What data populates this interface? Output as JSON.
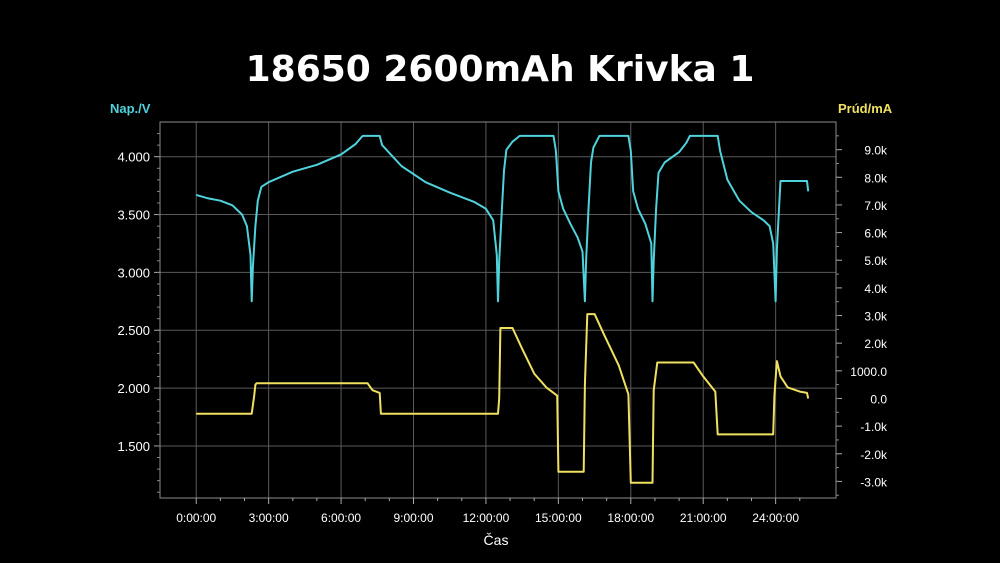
{
  "chart_data": {
    "type": "line",
    "title": "18650 2600mAh Krivka 1",
    "xlabel": "Čas",
    "ylabel_left": "Nap./V",
    "ylabel_right": "Prúd/mA",
    "x_ticks": [
      "0:00:00",
      "3:00:00",
      "6:00:00",
      "9:00:00",
      "12:00:00",
      "15:00:00",
      "18:00:00",
      "21:00:00",
      "24:00:00"
    ],
    "y_left_ticks": [
      "1.500",
      "2.000",
      "2.500",
      "3.000",
      "3.500",
      "4.000"
    ],
    "y_right_ticks": [
      "-3.0k",
      "-2.0k",
      "-1.0k",
      "0.0",
      "1000.0",
      "2.0k",
      "3.0k",
      "4.0k",
      "5.0k",
      "6.0k",
      "7.0k",
      "8.0k",
      "9.0k"
    ],
    "x_unit": "hours",
    "xlim": [
      -1.5,
      26.5
    ],
    "ylim_left": [
      1.05,
      4.3
    ],
    "ylim_right": [
      -3.6,
      10.0
    ],
    "grid": true,
    "colors": {
      "voltage": "#4fd2dc",
      "current": "#f0e060",
      "background": "#000000",
      "grid": "#5a5a5a",
      "text": "#ffffff"
    },
    "series": [
      {
        "axis": "left",
        "points": [
          [
            0,
            3.67
          ],
          [
            0.5,
            3.64
          ],
          [
            1.0,
            3.62
          ],
          [
            1.5,
            3.58
          ],
          [
            1.9,
            3.5
          ],
          [
            2.1,
            3.4
          ],
          [
            2.25,
            3.15
          ],
          [
            2.3,
            2.75
          ],
          [
            2.35,
            3.05
          ],
          [
            2.45,
            3.4
          ],
          [
            2.55,
            3.62
          ],
          [
            2.7,
            3.74
          ],
          [
            3.0,
            3.78
          ],
          [
            4.0,
            3.87
          ],
          [
            5.0,
            3.93
          ],
          [
            6.0,
            4.02
          ],
          [
            6.6,
            4.11
          ],
          [
            6.85,
            4.17
          ],
          [
            6.9,
            4.18
          ],
          [
            7.6,
            4.18
          ],
          [
            7.7,
            4.1
          ],
          [
            8.5,
            3.92
          ],
          [
            9.5,
            3.78
          ],
          [
            10.5,
            3.69
          ],
          [
            11.5,
            3.61
          ],
          [
            12.0,
            3.55
          ],
          [
            12.3,
            3.45
          ],
          [
            12.45,
            3.15
          ],
          [
            12.5,
            2.75
          ],
          [
            12.55,
            3.1
          ],
          [
            12.65,
            3.5
          ],
          [
            12.75,
            3.88
          ],
          [
            12.85,
            4.06
          ],
          [
            13.1,
            4.13
          ],
          [
            13.4,
            4.18
          ],
          [
            14.8,
            4.18
          ],
          [
            14.9,
            4.05
          ],
          [
            15.0,
            3.7
          ],
          [
            15.2,
            3.55
          ],
          [
            15.5,
            3.42
          ],
          [
            15.8,
            3.3
          ],
          [
            16.0,
            3.18
          ],
          [
            16.1,
            2.75
          ],
          [
            16.15,
            3.1
          ],
          [
            16.25,
            3.55
          ],
          [
            16.35,
            3.95
          ],
          [
            16.45,
            4.08
          ],
          [
            16.7,
            4.18
          ],
          [
            17.9,
            4.18
          ],
          [
            18.0,
            4.05
          ],
          [
            18.1,
            3.7
          ],
          [
            18.3,
            3.55
          ],
          [
            18.6,
            3.42
          ],
          [
            18.85,
            3.25
          ],
          [
            18.9,
            2.75
          ],
          [
            18.95,
            3.1
          ],
          [
            19.05,
            3.55
          ],
          [
            19.15,
            3.86
          ],
          [
            19.4,
            3.95
          ],
          [
            20.0,
            4.04
          ],
          [
            20.3,
            4.12
          ],
          [
            20.45,
            4.18
          ],
          [
            21.6,
            4.18
          ],
          [
            21.7,
            4.05
          ],
          [
            22.0,
            3.8
          ],
          [
            22.5,
            3.62
          ],
          [
            23.0,
            3.52
          ],
          [
            23.5,
            3.45
          ],
          [
            23.75,
            3.4
          ],
          [
            23.9,
            3.25
          ],
          [
            24.0,
            2.75
          ],
          [
            24.05,
            3.2
          ],
          [
            24.15,
            3.6
          ],
          [
            24.2,
            3.79
          ],
          [
            25.3,
            3.79
          ],
          [
            25.35,
            3.7
          ]
        ]
      },
      {
        "axis": "right",
        "points": [
          [
            0,
            -0.55
          ],
          [
            2.3,
            -0.55
          ],
          [
            2.4,
            0.1
          ],
          [
            2.45,
            0.5
          ],
          [
            2.5,
            0.55
          ],
          [
            7.1,
            0.55
          ],
          [
            7.3,
            0.3
          ],
          [
            7.6,
            0.2
          ],
          [
            7.65,
            -0.55
          ],
          [
            12.5,
            -0.55
          ],
          [
            12.55,
            0.0
          ],
          [
            12.6,
            2.55
          ],
          [
            13.1,
            2.55
          ],
          [
            13.5,
            1.8
          ],
          [
            14.0,
            0.9
          ],
          [
            14.5,
            0.4
          ],
          [
            14.95,
            0.1
          ],
          [
            15.0,
            -2.65
          ],
          [
            16.05,
            -2.65
          ],
          [
            16.1,
            0.5
          ],
          [
            16.2,
            3.05
          ],
          [
            16.5,
            3.05
          ],
          [
            16.9,
            2.3
          ],
          [
            17.5,
            1.2
          ],
          [
            17.9,
            0.15
          ],
          [
            18.0,
            -3.05
          ],
          [
            18.9,
            -3.05
          ],
          [
            18.95,
            0.3
          ],
          [
            19.1,
            1.3
          ],
          [
            20.6,
            1.3
          ],
          [
            21.0,
            0.8
          ],
          [
            21.5,
            0.25
          ],
          [
            21.6,
            -1.3
          ],
          [
            23.9,
            -1.3
          ],
          [
            23.95,
            0.1
          ],
          [
            24.05,
            1.35
          ],
          [
            24.2,
            0.8
          ],
          [
            24.5,
            0.4
          ],
          [
            25.0,
            0.25
          ],
          [
            25.3,
            0.2
          ],
          [
            25.35,
            0.0
          ]
        ]
      }
    ]
  }
}
